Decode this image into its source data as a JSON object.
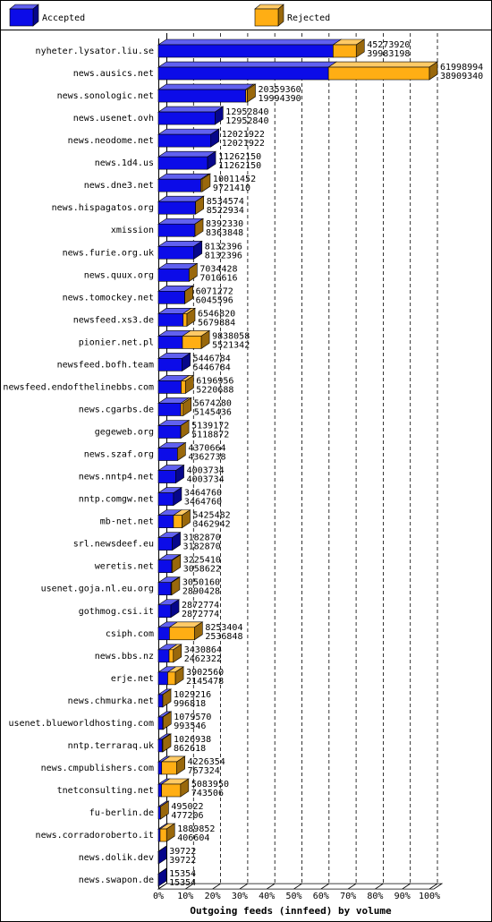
{
  "chart_data": {
    "type": "hbar3d",
    "xlabel": "Outgoing feeds (innfeed) by volume",
    "categories": [
      "nyheter.lysator.liu.se",
      "news.ausics.net",
      "news.sonologic.net",
      "news.usenet.ovh",
      "news.neodome.net",
      "news.1d4.us",
      "news.dne3.net",
      "news.hispagatos.org",
      "xmission",
      "news.furie.org.uk",
      "news.quux.org",
      "news.tomockey.net",
      "newsfeed.xs3.de",
      "pionier.net.pl",
      "newsfeed.bofh.team",
      "newsfeed.endofthelinebbs.com",
      "news.cgarbs.de",
      "gegeweb.org",
      "news.szaf.org",
      "news.nntp4.net",
      "nntp.comgw.net",
      "mb-net.net",
      "srl.newsdeef.eu",
      "weretis.net",
      "usenet.goja.nl.eu.org",
      "gothmog.csi.it",
      "csiph.com",
      "news.bbs.nz",
      "erje.net",
      "news.chmurka.net",
      "usenet.blueworldhosting.com",
      "nntp.terraraq.uk",
      "news.cmpublishers.com",
      "tnetconsulting.net",
      "fu-berlin.de",
      "news.corradoroberto.it",
      "news.dolik.dev",
      "news.swapon.de"
    ],
    "series": [
      {
        "name": "Accepted",
        "color": "#0c0ce8",
        "values": [
          39983198,
          38909340,
          19994390,
          12952840,
          12021922,
          11262150,
          9721410,
          8522934,
          8363848,
          8132396,
          7010616,
          6045596,
          5679884,
          5521342,
          5446784,
          5220688,
          5145436,
          5118872,
          4362738,
          4003734,
          3464760,
          3462942,
          3182870,
          3058622,
          2890428,
          2872774,
          2536848,
          2462322,
          2145478,
          996818,
          993546,
          862618,
          767324,
          743506,
          477206,
          406604,
          39722,
          15354
        ]
      },
      {
        "name": "Rejected",
        "color": "#ffae14",
        "values": [
          5290722,
          23089654,
          364970,
          0,
          0,
          0,
          290042,
          11640,
          28482,
          0,
          23812,
          25676,
          866936,
          4316716,
          0,
          976268,
          528844,
          20300,
          7926,
          0,
          0,
          1962540,
          0,
          166788,
          159732,
          0,
          5716556,
          968542,
          1757082,
          32398,
          86024,
          164320,
          3459030,
          4340444,
          17816,
          1483248,
          0,
          0
        ]
      }
    ],
    "totals": [
      45273920,
      61998994,
      20359360,
      12952840,
      12021922,
      11262150,
      10011452,
      8534574,
      8392330,
      8132396,
      7034428,
      6071272,
      6546820,
      9838058,
      5446784,
      6196956,
      5674280,
      5139172,
      4370664,
      4003734,
      3464760,
      5425482,
      3182870,
      3225410,
      3050160,
      2872774,
      8253404,
      3430864,
      3902560,
      1029216,
      1079570,
      1026938,
      4226354,
      5083950,
      495022,
      1889852,
      39722,
      15354
    ],
    "xlim": [
      0,
      100
    ],
    "xticks": [
      {
        "value": 0,
        "label": "0%"
      },
      {
        "value": 10,
        "label": "10%"
      },
      {
        "value": 20,
        "label": "20%"
      },
      {
        "value": 30,
        "label": "30%"
      },
      {
        "value": 40,
        "label": "40%"
      },
      {
        "value": 50,
        "label": "50%"
      },
      {
        "value": 60,
        "label": "60%"
      },
      {
        "value": 70,
        "label": "70%"
      },
      {
        "value": 80,
        "label": "80%"
      },
      {
        "value": 90,
        "label": "90%"
      },
      {
        "value": 100,
        "label": "100%"
      }
    ],
    "grid": true
  }
}
